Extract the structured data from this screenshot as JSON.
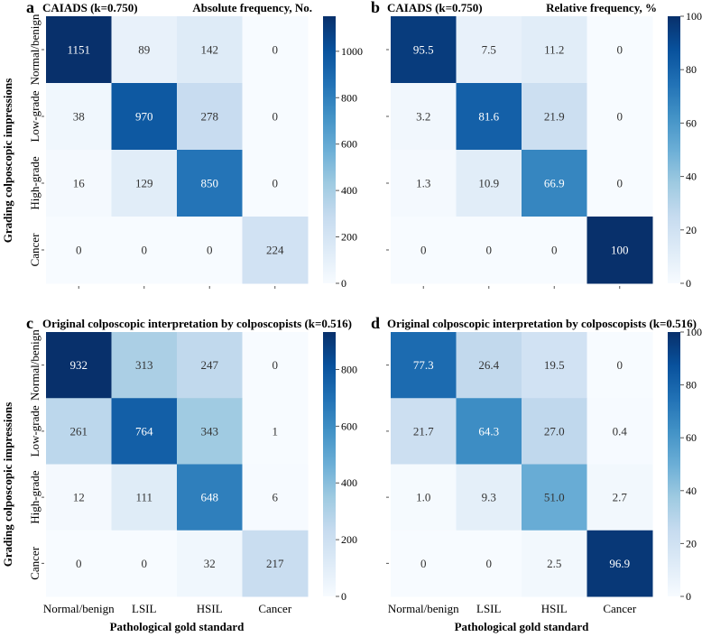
{
  "y_axis_title": "Grading colposcopic impressions",
  "x_axis_title": "Pathological gold standard",
  "row_labels": [
    "Normal/benign",
    "Low-grade",
    "High-grade",
    "Cancer"
  ],
  "col_labels": [
    "Normal/benign",
    "LSIL",
    "HSIL",
    "Cancer"
  ],
  "colors": {
    "low": "#f7fbff",
    "high": "#08306b",
    "text_dark": "#333333",
    "text_light": "#ffffff",
    "tick": "#555555"
  },
  "chart_data": [
    {
      "type": "heatmap",
      "panel": "a",
      "title": "CAIADS (k=0.750)",
      "subtitle": "Absolute frequency, No.",
      "values": [
        [
          1151,
          89,
          142,
          0
        ],
        [
          38,
          970,
          278,
          0
        ],
        [
          16,
          129,
          850,
          0
        ],
        [
          0,
          0,
          0,
          224
        ]
      ],
      "labels": [
        [
          "1151",
          "89",
          "142",
          "0"
        ],
        [
          "38",
          "970",
          "278",
          "0"
        ],
        [
          "16",
          "129",
          "850",
          "0"
        ],
        [
          "0",
          "0",
          "0",
          "224"
        ]
      ],
      "vmin": 0,
      "vmax": 1151,
      "colorbar_ticks": [
        0,
        200,
        400,
        600,
        800,
        1000
      ],
      "show_x_tick_labels": false
    },
    {
      "type": "heatmap",
      "panel": "b",
      "title": "CAIADS (k=0.750)",
      "subtitle": "Relative frequency, %",
      "values": [
        [
          95.5,
          7.5,
          11.2,
          0
        ],
        [
          3.2,
          81.6,
          21.9,
          0
        ],
        [
          1.3,
          10.9,
          66.9,
          0
        ],
        [
          0,
          0,
          0,
          100
        ]
      ],
      "labels": [
        [
          "95.5",
          "7.5",
          "11.2",
          "0"
        ],
        [
          "3.2",
          "81.6",
          "21.9",
          "0"
        ],
        [
          "1.3",
          "10.9",
          "66.9",
          "0"
        ],
        [
          "0",
          "0",
          "0",
          "100"
        ]
      ],
      "vmin": 0,
      "vmax": 100,
      "colorbar_ticks": [
        0,
        20,
        40,
        60,
        80,
        100
      ],
      "show_x_tick_labels": false
    },
    {
      "type": "heatmap",
      "panel": "c",
      "title": "Original colposcopic interpretation by colposcopists (k=0.516)",
      "subtitle": "",
      "values": [
        [
          932,
          313,
          247,
          0
        ],
        [
          261,
          764,
          343,
          1
        ],
        [
          12,
          111,
          648,
          6
        ],
        [
          0,
          0,
          32,
          217
        ]
      ],
      "labels": [
        [
          "932",
          "313",
          "247",
          "0"
        ],
        [
          "261",
          "764",
          "343",
          "1"
        ],
        [
          "12",
          "111",
          "648",
          "6"
        ],
        [
          "0",
          "0",
          "32",
          "217"
        ]
      ],
      "vmin": 0,
      "vmax": 932,
      "colorbar_ticks": [
        0,
        200,
        400,
        600,
        800
      ],
      "show_x_tick_labels": true
    },
    {
      "type": "heatmap",
      "panel": "d",
      "title": "Original colposcopic interpretation by colposcopists (k=0.516)",
      "subtitle": "",
      "values": [
        [
          77.3,
          26.4,
          19.5,
          0
        ],
        [
          21.7,
          64.3,
          27.0,
          0.4
        ],
        [
          1.0,
          9.3,
          51.0,
          2.7
        ],
        [
          0,
          0,
          2.5,
          96.9
        ]
      ],
      "labels": [
        [
          "77.3",
          "26.4",
          "19.5",
          "0"
        ],
        [
          "21.7",
          "64.3",
          "27.0",
          "0.4"
        ],
        [
          "1.0",
          "9.3",
          "51.0",
          "2.7"
        ],
        [
          "0",
          "0",
          "2.5",
          "96.9"
        ]
      ],
      "vmin": 0,
      "vmax": 100,
      "colorbar_ticks": [
        0,
        20,
        40,
        60,
        80,
        100
      ],
      "show_x_tick_labels": true
    }
  ]
}
